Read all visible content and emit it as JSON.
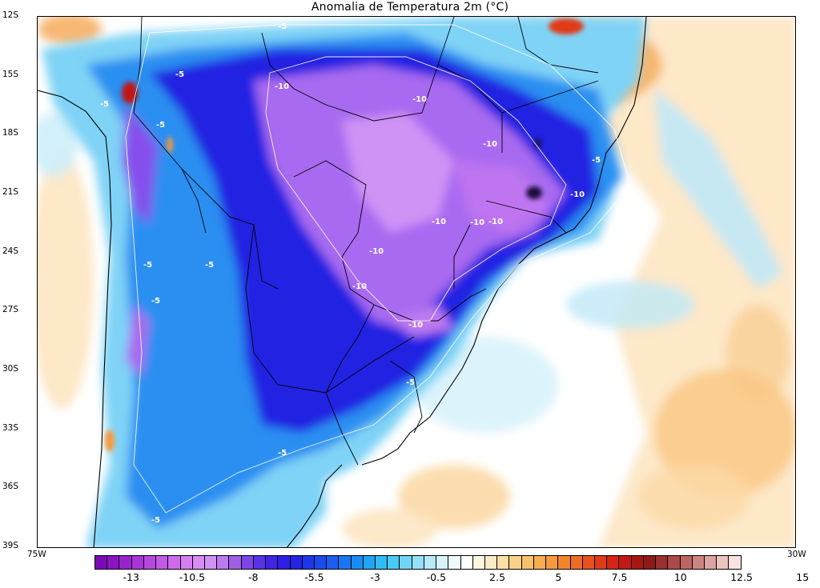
{
  "title": "Anomalia de Temperatura 2m (°C)",
  "lat_labels": [
    "12S",
    "15S",
    "18S",
    "21S",
    "24S",
    "27S",
    "30S",
    "33S",
    "36S",
    "39S"
  ],
  "lon_labels": [
    "75W",
    "30W"
  ],
  "contour_labels": [
    "-5",
    "-5",
    "-5",
    "-5",
    "-5",
    "-5",
    "-5",
    "-5",
    "-5",
    "-5",
    "-5",
    "-10",
    "-10",
    "-10",
    "-10",
    "-10",
    "-10",
    "-10",
    "-10",
    "-10",
    "-10"
  ],
  "colorbar": {
    "tick_labels": [
      "-13",
      "-10.5",
      "-8",
      "-5.5",
      "-3",
      "-0.5",
      "2.5",
      "5",
      "7.5",
      "10",
      "12.5",
      "15"
    ],
    "colors": [
      "#7a0bb7",
      "#8a14c4",
      "#9a22cf",
      "#aa34d9",
      "#b846e0",
      "#c35ae6",
      "#cc6ceb",
      "#d57ef0",
      "#d98cf2",
      "#cf93f5",
      "#bd7af0",
      "#a05fe8",
      "#7d45e6",
      "#5a32e8",
      "#4123e6",
      "#2e1ee6",
      "#2424e2",
      "#1f37e8",
      "#1c4bed",
      "#1a5ff0",
      "#1a75f2",
      "#1a8df3",
      "#1ea5f4",
      "#2fbbf5",
      "#4ccaf6",
      "#6fd6f7",
      "#94e0f8",
      "#b7eaf9",
      "#d6f3fb",
      "#eefafd",
      "#ffffff",
      "#fff6e2",
      "#ffebc6",
      "#fde0a8",
      "#fbd18a",
      "#f9c06c",
      "#f7ae52",
      "#f59a3d",
      "#f2842e",
      "#ee6c24",
      "#e8531d",
      "#e13a17",
      "#d52515",
      "#c31813",
      "#a8160f",
      "#8e1a18",
      "#9a3030",
      "#ab4a48",
      "#bc6664",
      "#cc8481",
      "#dca3a0",
      "#ecc4c1",
      "#f8e2e0"
    ]
  },
  "legend_range": {
    "min": -13,
    "max": 15,
    "step": 0.5,
    "unit": "°C"
  }
}
